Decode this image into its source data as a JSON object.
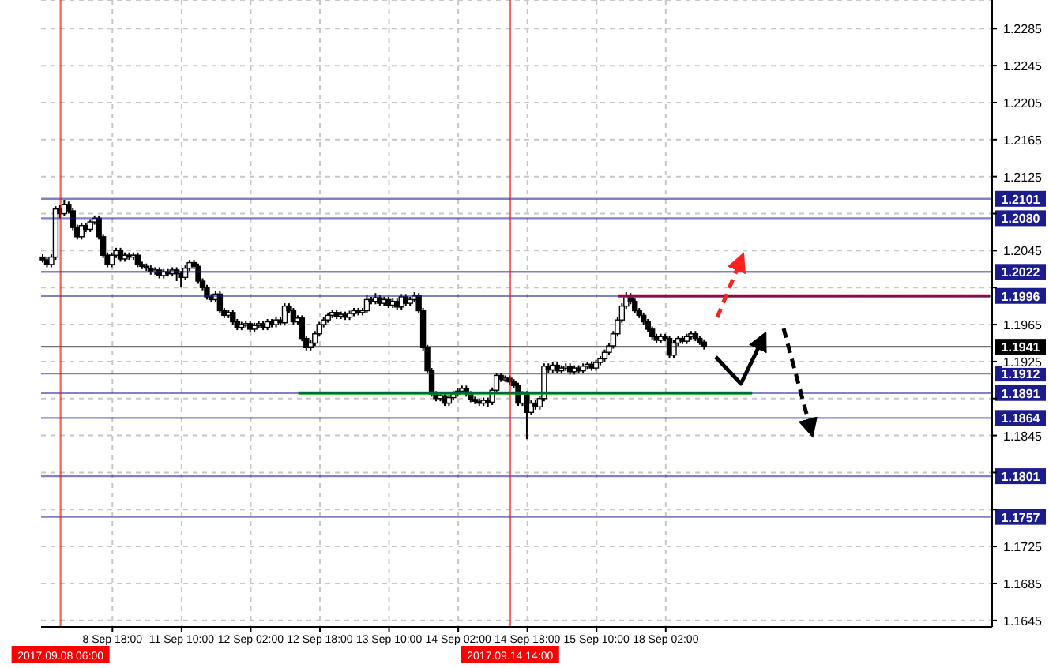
{
  "chart_data": {
    "type": "candlestick",
    "categories": [
      null,
      null,
      null,
      null,
      "2017.09.08 06:00",
      null,
      null,
      null,
      null,
      null,
      null,
      null,
      null,
      null,
      null,
      null,
      "8 Sep 18:00",
      null,
      null,
      null,
      null,
      null,
      null,
      null,
      null,
      null,
      null,
      null,
      null,
      null,
      null,
      null,
      "11 Sep 10:00",
      null,
      null,
      null,
      null,
      null,
      null,
      null,
      null,
      null,
      null,
      null,
      null,
      null,
      null,
      null,
      "12 Sep 02:00",
      null,
      null,
      null,
      null,
      null,
      null,
      null,
      null,
      null,
      null,
      null,
      null,
      null,
      null,
      null,
      "12 Sep 18:00",
      null,
      null,
      null,
      null,
      null,
      null,
      null,
      null,
      null,
      null,
      null,
      null,
      null,
      null,
      null,
      "13 Sep 10:00",
      null,
      null,
      null,
      null,
      null,
      null,
      null,
      null,
      null,
      null,
      null,
      null,
      null,
      null,
      null,
      "14 Sep 02:00",
      null,
      null,
      null,
      null,
      null,
      null,
      null,
      null,
      null,
      null,
      null,
      "2017.09.14 14:00",
      null,
      null,
      null,
      "14 Sep 18:00",
      null,
      null,
      null,
      null,
      null,
      null,
      null,
      null,
      null,
      null,
      null,
      null,
      null,
      null,
      null,
      "15 Sep 10:00",
      null,
      null,
      null,
      null,
      null,
      null,
      null,
      null,
      null,
      null,
      null,
      null,
      null,
      null,
      null,
      "18 Sep 02:00",
      null,
      null,
      null,
      null,
      null,
      null,
      null,
      null,
      null,
      null,
      null,
      null,
      null,
      null,
      null,
      null,
      null,
      null,
      null,
      null,
      null,
      null,
      null,
      null,
      null,
      null,
      null,
      null,
      null,
      null,
      null,
      null,
      null,
      null,
      null,
      null,
      null,
      null,
      null,
      null,
      null,
      null,
      null,
      null,
      null,
      null,
      null,
      null,
      null,
      null,
      null,
      null,
      null,
      null,
      null,
      null,
      null,
      null,
      null,
      null,
      null,
      null,
      null,
      null,
      null,
      null,
      null,
      null,
      null,
      null,
      null,
      null,
      null,
      null,
      null
    ],
    "ohlc": [
      [
        1.2038,
        1.2041,
        1.2032,
        1.2035
      ],
      [
        1.2035,
        1.2038,
        1.2027,
        1.203
      ],
      [
        1.203,
        1.2041,
        1.2027,
        1.2038
      ],
      [
        1.2038,
        1.2093,
        1.2035,
        1.209
      ],
      [
        1.209,
        1.2094,
        1.208,
        1.2085
      ],
      [
        1.2085,
        1.21,
        1.2082,
        1.2095
      ],
      [
        1.2095,
        1.2098,
        1.2085,
        1.2088
      ],
      [
        1.2088,
        1.2091,
        1.2067,
        1.207
      ],
      [
        1.207,
        1.2073,
        1.2057,
        1.206
      ],
      [
        1.206,
        1.2075,
        1.2057,
        1.2072
      ],
      [
        1.2072,
        1.2075,
        1.2065,
        1.2068
      ],
      [
        1.2068,
        1.2079,
        1.2065,
        1.2076
      ],
      [
        1.2076,
        1.2083,
        1.2073,
        1.208
      ],
      [
        1.208,
        1.2083,
        1.2057,
        1.206
      ],
      [
        1.206,
        1.2063,
        1.2037,
        1.204
      ],
      [
        1.204,
        1.2043,
        1.2027,
        1.203
      ],
      [
        1.203,
        1.2043,
        1.2027,
        1.204
      ],
      [
        1.204,
        1.2048,
        1.2037,
        1.2045
      ],
      [
        1.2045,
        1.2048,
        1.2033,
        1.2036
      ],
      [
        1.2036,
        1.2043,
        1.2033,
        1.204
      ],
      [
        1.204,
        1.2043,
        1.2035,
        1.2038
      ],
      [
        1.2038,
        1.2043,
        1.2035,
        1.204
      ],
      [
        1.204,
        1.2043,
        1.2027,
        1.203
      ],
      [
        1.203,
        1.2033,
        1.2025,
        1.2028
      ],
      [
        1.2028,
        1.2031,
        1.2023,
        1.2026
      ],
      [
        1.2026,
        1.2029,
        1.2019,
        1.2022
      ],
      [
        1.2022,
        1.2027,
        1.2019,
        1.2024
      ],
      [
        1.2024,
        1.2027,
        1.2015,
        1.2018
      ],
      [
        1.2018,
        1.2025,
        1.2015,
        1.2022
      ],
      [
        1.2022,
        1.2025,
        1.2017,
        1.202
      ],
      [
        1.202,
        1.2027,
        1.2017,
        1.2024
      ],
      [
        1.2024,
        1.2027,
        1.2012,
        1.202
      ],
      [
        1.202,
        1.2023,
        1.2005,
        1.2016
      ],
      [
        1.2016,
        1.2029,
        1.2013,
        1.2026
      ],
      [
        1.2026,
        1.2035,
        1.2023,
        1.2032
      ],
      [
        1.2032,
        1.2035,
        1.2025,
        1.2028
      ],
      [
        1.2028,
        1.2031,
        1.2009,
        1.2012
      ],
      [
        1.2012,
        1.2015,
        1.2002,
        1.2005
      ],
      [
        1.2005,
        1.2008,
        1.1992,
        1.1995
      ],
      [
        1.1995,
        1.1998,
        1.1989,
        1.1992
      ],
      [
        1.1992,
        1.2001,
        1.1989,
        1.1998
      ],
      [
        1.1998,
        1.2001,
        1.1977,
        1.198
      ],
      [
        1.198,
        1.1983,
        1.1972,
        1.1975
      ],
      [
        1.1975,
        1.1981,
        1.1972,
        1.1978
      ],
      [
        1.1978,
        1.1981,
        1.1965,
        1.1968
      ],
      [
        1.1968,
        1.1971,
        1.1959,
        1.1962
      ],
      [
        1.1962,
        1.1968,
        1.1959,
        1.1965
      ],
      [
        1.1965,
        1.1969,
        1.1962,
        1.1966
      ],
      [
        1.1966,
        1.1969,
        1.1957,
        1.196
      ],
      [
        1.196,
        1.1967,
        1.1957,
        1.1964
      ],
      [
        1.1964,
        1.1969,
        1.1961,
        1.1966
      ],
      [
        1.1966,
        1.1969,
        1.1959,
        1.1962
      ],
      [
        1.1962,
        1.1971,
        1.1959,
        1.1968
      ],
      [
        1.1968,
        1.1971,
        1.1962,
        1.1965
      ],
      [
        1.1965,
        1.1973,
        1.1962,
        1.197
      ],
      [
        1.197,
        1.1973,
        1.1964,
        1.1967
      ],
      [
        1.1967,
        1.1988,
        1.1964,
        1.1985
      ],
      [
        1.1985,
        1.1988,
        1.1977,
        1.198
      ],
      [
        1.198,
        1.1983,
        1.1965,
        1.1968
      ],
      [
        1.1968,
        1.1975,
        1.1965,
        1.1972
      ],
      [
        1.1972,
        1.1975,
        1.1947,
        1.195
      ],
      [
        1.195,
        1.1953,
        1.1937,
        1.194
      ],
      [
        1.194,
        1.1948,
        1.1937,
        1.1945
      ],
      [
        1.1945,
        1.1958,
        1.1942,
        1.1955
      ],
      [
        1.1955,
        1.1968,
        1.1952,
        1.1965
      ],
      [
        1.1965,
        1.1973,
        1.1962,
        1.197
      ],
      [
        1.197,
        1.1978,
        1.1967,
        1.1975
      ],
      [
        1.1975,
        1.1981,
        1.1972,
        1.1978
      ],
      [
        1.1978,
        1.1981,
        1.1971,
        1.1974
      ],
      [
        1.1974,
        1.1979,
        1.1971,
        1.1976
      ],
      [
        1.1976,
        1.1979,
        1.197,
        1.1973
      ],
      [
        1.1973,
        1.198,
        1.197,
        1.1977
      ],
      [
        1.1977,
        1.1983,
        1.1974,
        1.198
      ],
      [
        1.198,
        1.1983,
        1.1975,
        1.1978
      ],
      [
        1.1978,
        1.1983,
        1.1975,
        1.198
      ],
      [
        1.198,
        1.1997,
        1.1977,
        1.1992
      ],
      [
        1.1992,
        1.1995,
        1.1987,
        1.199
      ],
      [
        1.199,
        1.1999,
        1.1987,
        1.1994
      ],
      [
        1.1994,
        1.1997,
        1.1985,
        1.1988
      ],
      [
        1.1988,
        1.1995,
        1.1985,
        1.1992
      ],
      [
        1.1992,
        1.1995,
        1.1983,
        1.1986
      ],
      [
        1.1986,
        1.1993,
        1.1983,
        1.199
      ],
      [
        1.199,
        1.1993,
        1.1981,
        1.1984
      ],
      [
        1.1984,
        1.1998,
        1.1981,
        1.1995
      ],
      [
        1.1995,
        1.1998,
        1.1985,
        1.1988
      ],
      [
        1.1988,
        1.1995,
        1.1985,
        1.1992
      ],
      [
        1.1992,
        1.2,
        1.1989,
        1.1996
      ],
      [
        1.1996,
        1.1999,
        1.1977,
        1.198
      ],
      [
        1.198,
        1.1983,
        1.1937,
        1.194
      ],
      [
        1.194,
        1.1943,
        1.1912,
        1.1915
      ],
      [
        1.1915,
        1.1918,
        1.1887,
        1.189
      ],
      [
        1.189,
        1.1893,
        1.1882,
        1.1885
      ],
      [
        1.1885,
        1.1891,
        1.1882,
        1.1888
      ],
      [
        1.1888,
        1.1891,
        1.1877,
        1.188
      ],
      [
        1.188,
        1.1889,
        1.1877,
        1.1886
      ],
      [
        1.1886,
        1.1893,
        1.1883,
        1.189
      ],
      [
        1.189,
        1.1896,
        1.1887,
        1.1893
      ],
      [
        1.1893,
        1.1899,
        1.189,
        1.1896
      ],
      [
        1.1896,
        1.1899,
        1.1887,
        1.189
      ],
      [
        1.189,
        1.1893,
        1.1881,
        1.1884
      ],
      [
        1.1884,
        1.1887,
        1.1879,
        1.1882
      ],
      [
        1.1882,
        1.1885,
        1.1877,
        1.188
      ],
      [
        1.188,
        1.1886,
        1.1877,
        1.1883
      ],
      [
        1.1883,
        1.1886,
        1.1876,
        1.1881
      ],
      [
        1.1881,
        1.1897,
        1.1878,
        1.1894
      ],
      [
        1.1894,
        1.1913,
        1.1891,
        1.191
      ],
      [
        1.191,
        1.1913,
        1.1903,
        1.1906
      ],
      [
        1.1906,
        1.191,
        1.1903,
        1.1907
      ],
      [
        1.1907,
        1.191,
        1.19,
        1.1903
      ],
      [
        1.1903,
        1.1906,
        1.1896,
        1.1899
      ],
      [
        1.1899,
        1.1902,
        1.1877,
        1.188
      ],
      [
        1.188,
        1.1893,
        1.1877,
        1.189
      ],
      [
        1.189,
        1.1893,
        1.1841,
        1.187
      ],
      [
        1.187,
        1.1883,
        1.1867,
        1.188
      ],
      [
        1.188,
        1.1883,
        1.1873,
        1.1876
      ],
      [
        1.1876,
        1.1888,
        1.1873,
        1.1885
      ],
      [
        1.1885,
        1.1923,
        1.1882,
        1.192
      ],
      [
        1.192,
        1.1923,
        1.1913,
        1.1916
      ],
      [
        1.1916,
        1.1924,
        1.1913,
        1.1921
      ],
      [
        1.1921,
        1.1924,
        1.1912,
        1.1915
      ],
      [
        1.1915,
        1.1921,
        1.1912,
        1.1918
      ],
      [
        1.1918,
        1.1923,
        1.1915,
        1.192
      ],
      [
        1.192,
        1.1923,
        1.1911,
        1.1914
      ],
      [
        1.1914,
        1.1921,
        1.1911,
        1.1918
      ],
      [
        1.1918,
        1.1921,
        1.1912,
        1.1915
      ],
      [
        1.1915,
        1.1923,
        1.1912,
        1.192
      ],
      [
        1.192,
        1.1925,
        1.1917,
        1.1922
      ],
      [
        1.1922,
        1.1925,
        1.1915,
        1.1918
      ],
      [
        1.1918,
        1.1927,
        1.1915,
        1.1924
      ],
      [
        1.1924,
        1.1931,
        1.1921,
        1.1928
      ],
      [
        1.1928,
        1.1938,
        1.1925,
        1.1935
      ],
      [
        1.1935,
        1.1945,
        1.1932,
        1.1942
      ],
      [
        1.1942,
        1.1958,
        1.1939,
        1.1955
      ],
      [
        1.1955,
        1.1973,
        1.1952,
        1.197
      ],
      [
        1.197,
        1.1988,
        1.1967,
        1.1985
      ],
      [
        1.1985,
        1.2,
        1.1982,
        1.1996
      ],
      [
        1.1996,
        1.1999,
        1.1987,
        1.199
      ],
      [
        1.199,
        1.1993,
        1.1977,
        1.198
      ],
      [
        1.198,
        1.1983,
        1.1972,
        1.1975
      ],
      [
        1.1975,
        1.1978,
        1.1965,
        1.1968
      ],
      [
        1.1968,
        1.1971,
        1.1957,
        1.196
      ],
      [
        1.196,
        1.1963,
        1.1949,
        1.1952
      ],
      [
        1.1952,
        1.1955,
        1.1945,
        1.1948
      ],
      [
        1.1948,
        1.1955,
        1.1945,
        1.1952
      ],
      [
        1.1952,
        1.1955,
        1.1947,
        1.195
      ],
      [
        1.195,
        1.1953,
        1.1929,
        1.1932
      ],
      [
        1.1932,
        1.1948,
        1.1929,
        1.1945
      ],
      [
        1.1945,
        1.1953,
        1.1942,
        1.195
      ],
      [
        1.195,
        1.1953,
        1.1944,
        1.1947
      ],
      [
        1.1947,
        1.1955,
        1.1944,
        1.1952
      ],
      [
        1.1952,
        1.1958,
        1.1949,
        1.1955
      ],
      [
        1.1955,
        1.1958,
        1.1947,
        1.195
      ],
      [
        1.195,
        1.1953,
        1.1943,
        1.1946
      ],
      [
        1.1946,
        1.1949,
        1.1938,
        1.1941
      ],
      null,
      null,
      null,
      null,
      null,
      null,
      null,
      null,
      null,
      null,
      null,
      null,
      null,
      null,
      null,
      null,
      null,
      null,
      null,
      null,
      null,
      null,
      null,
      null,
      null,
      null,
      null,
      null,
      null,
      null,
      null,
      null,
      null,
      null,
      null,
      null,
      null,
      null,
      null,
      null,
      null,
      null,
      null,
      null,
      null,
      null,
      null,
      null,
      null,
      null,
      null,
      null,
      null,
      null,
      null,
      null,
      null,
      null,
      null,
      null,
      null,
      null,
      null,
      null,
      null,
      null
    ],
    "series": [
      {
        "type": "line",
        "color": "#00b000",
        "values": [
          null,
          null,
          null,
          null,
          null,
          null,
          null,
          null,
          null,
          null,
          null,
          null,
          null,
          null,
          null,
          null,
          null,
          null,
          null,
          null,
          null,
          null,
          null,
          null,
          null,
          null,
          null,
          null,
          null,
          null,
          null,
          null,
          null,
          null,
          null,
          null,
          null,
          null,
          null,
          null,
          null,
          null,
          null,
          null,
          null,
          null,
          null,
          null,
          null,
          null,
          null,
          null,
          null,
          null,
          null,
          null,
          null,
          null,
          null,
          1.1891,
          1.1891,
          1.1891,
          1.1891,
          1.1891,
          1.1891,
          1.1891,
          1.1891,
          1.1891,
          1.1891,
          1.1891,
          1.1891,
          1.1891,
          1.1891,
          1.1891,
          1.1891,
          1.1891,
          1.1891,
          1.1891,
          1.1891,
          1.1891,
          1.1891,
          1.1891,
          1.1891,
          1.1891,
          1.1891,
          1.1891,
          1.1891,
          1.1891,
          1.1891,
          1.1891,
          1.1891,
          1.1891,
          1.1891,
          1.1891,
          1.1891,
          1.1891,
          1.1891,
          1.1891,
          1.1891,
          1.1891,
          1.1891,
          1.1891,
          1.1891,
          1.1891,
          1.1891,
          1.1891,
          1.1891,
          1.1891,
          1.1891,
          1.1891,
          1.1891,
          1.1891,
          1.1891,
          1.1891,
          1.1891,
          1.1891,
          1.1891,
          1.1891,
          1.1891,
          1.1891,
          1.1891,
          1.1891,
          1.1891,
          1.1891,
          1.1891,
          1.1891,
          1.1891,
          1.1891,
          1.1891,
          1.1891,
          1.1891,
          1.1891,
          1.1891,
          1.1891,
          1.1891,
          1.1891,
          1.1891,
          1.1891,
          1.1891,
          1.1891,
          1.1891,
          1.1891,
          1.1891,
          1.1891,
          1.1891,
          1.1891,
          1.1891,
          1.1891,
          1.1891,
          1.1891,
          1.1891,
          1.1891,
          1.1891,
          1.1891,
          1.1891,
          1.1891,
          1.1891,
          1.1891,
          1.1891,
          1.1891,
          1.1891,
          1.1891,
          1.1891,
          1.1891,
          1.1891,
          null,
          null,
          null,
          null,
          null,
          null,
          null,
          null,
          null,
          null,
          null,
          null,
          null,
          null,
          null,
          null,
          null,
          null,
          null,
          null,
          null,
          null,
          null,
          null,
          null,
          null,
          null,
          null,
          null,
          null,
          null,
          null,
          null,
          null,
          null,
          null,
          null,
          null,
          null,
          null,
          null,
          null,
          null,
          null,
          null,
          null,
          null,
          null,
          null,
          null,
          null,
          null,
          null,
          null,
          null
        ]
      },
      {
        "type": "line",
        "color": "#ff0000",
        "values": [
          null,
          null,
          null,
          null,
          null,
          null,
          null,
          null,
          null,
          null,
          null,
          null,
          null,
          null,
          null,
          null,
          null,
          null,
          null,
          null,
          null,
          null,
          null,
          null,
          null,
          null,
          null,
          null,
          null,
          null,
          null,
          null,
          null,
          null,
          null,
          null,
          null,
          null,
          null,
          null,
          null,
          null,
          null,
          null,
          null,
          null,
          null,
          null,
          null,
          null,
          null,
          null,
          null,
          null,
          null,
          null,
          null,
          null,
          null,
          null,
          null,
          null,
          null,
          null,
          null,
          null,
          null,
          null,
          null,
          null,
          null,
          null,
          null,
          null,
          null,
          null,
          null,
          null,
          null,
          null,
          null,
          null,
          null,
          null,
          null,
          null,
          null,
          null,
          null,
          null,
          null,
          null,
          null,
          null,
          null,
          null,
          null,
          null,
          null,
          null,
          null,
          null,
          null,
          null,
          null,
          null,
          null,
          null,
          null,
          null,
          null,
          null,
          null,
          null,
          null,
          null,
          null,
          null,
          null,
          null,
          null,
          null,
          null,
          null,
          null,
          null,
          null,
          null,
          null,
          null,
          null,
          null,
          null,
          1.1996,
          1.1996,
          1.1996,
          1.1996,
          1.1996,
          1.1996,
          1.1996,
          1.1996,
          1.1996,
          1.1996,
          1.1996,
          1.1996,
          1.1996,
          1.1996,
          1.1996,
          1.1996,
          1.1996,
          1.1996,
          1.1996,
          1.1996,
          1.1996,
          1.1996,
          1.1996,
          1.1996,
          1.1996,
          1.1996,
          1.1996,
          1.1996,
          1.1996,
          1.1996,
          1.1996,
          1.1996,
          1.1996,
          1.1996,
          1.1996,
          1.1996,
          1.1996,
          1.1996,
          1.1996,
          1.1996,
          1.1996,
          1.1996,
          1.1996,
          1.1996,
          1.1996,
          1.1996,
          1.1996,
          1.1996,
          1.1996,
          1.1996,
          1.1996,
          1.1996,
          1.1996,
          1.1996,
          1.1996,
          1.1996,
          1.1996,
          1.1996,
          1.1996,
          1.1996,
          1.1996,
          1.1996,
          1.1996,
          1.1996,
          1.1996,
          1.1996,
          1.1996,
          1.1996,
          1.1996,
          1.1996,
          1.1996,
          1.1996,
          1.1996,
          1.1996,
          1.1996,
          1.1996,
          1.1996,
          1.1996,
          1.1996,
          1.1996,
          1.1996,
          1.1996,
          1.1996,
          1.1996,
          1.1996,
          1.1996,
          1.1996
        ]
      }
    ],
    "ylim": [
      1.1638,
      1.2316
    ],
    "yticks": [
      1.1645,
      1.1685,
      1.1725,
      {
        "value": 1.1765,
        "label": null
      },
      {
        "value": 1.1805,
        "label": null
      },
      1.1845,
      {
        "value": 1.1885,
        "label": null
      },
      1.1925,
      1.1965,
      {
        "value": 1.2005,
        "label": null
      },
      1.2045,
      {
        "value": 1.2085,
        "label": null
      },
      1.2125,
      1.2165,
      1.2205,
      1.2245,
      1.2285
    ],
    "ref_lines": [
      {
        "axis": "y",
        "value": 1.2101,
        "label": "1.2101",
        "color": "#1c1c8c"
      },
      {
        "axis": "y",
        "value": 1.208,
        "label": "1.2080",
        "color": "#1c1c8c"
      },
      {
        "axis": "y",
        "value": 1.2022,
        "label": "1.2022",
        "color": "#1c1c8c"
      },
      {
        "axis": "y",
        "value": 1.1996,
        "label": "1.1996",
        "color": "#1c1c8c"
      },
      {
        "axis": "y",
        "value": 1.1941,
        "label": "1.1941",
        "color": "#000000"
      },
      {
        "axis": "y",
        "value": 1.1912,
        "label": "1.1912",
        "color": "#1c1c8c"
      },
      {
        "axis": "y",
        "value": 1.1891,
        "label": "1.1891",
        "color": "#1c1c8c"
      },
      {
        "axis": "y",
        "value": 1.1864,
        "label": "1.1864",
        "color": "#1c1c8c"
      },
      {
        "axis": "y",
        "value": 1.1801,
        "label": "1.1801",
        "color": "#1c1c8c"
      },
      {
        "axis": "y",
        "value": 1.1757,
        "label": "1.1757",
        "color": "#1c1c8c"
      },
      {
        "axis": "x",
        "value": "2017.09.08 06:00",
        "color": "#ff0000"
      },
      {
        "axis": "x",
        "value": "2017.09.14 14:00",
        "color": "#ff0000"
      }
    ],
    "grid": true
  }
}
